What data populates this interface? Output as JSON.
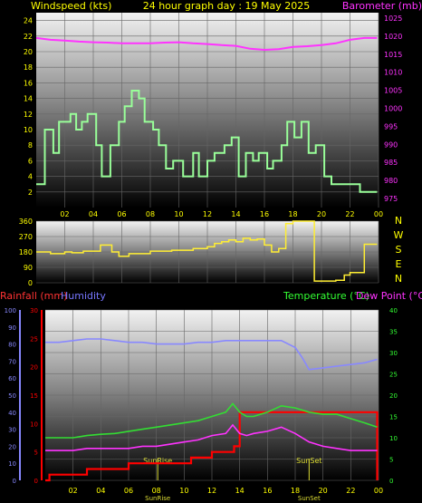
{
  "header": {
    "left_title": "Windspeed (kts)",
    "center_title": "24 hour graph day : 19 May 2025",
    "right_title": "Barometer (mb)"
  },
  "colors": {
    "wind": "#99ff99",
    "baro": "#ff33ff",
    "winddir": "#ffee33",
    "rain": "#ff0000",
    "humidity": "#8888ff",
    "temp": "#33dd33",
    "dew": "#ff33ff",
    "sun": "#dddd33",
    "yellow_text": "#ffff00",
    "red_text": "#ff3333",
    "blue_text": "#7777ff",
    "green_text": "#33ff33",
    "magenta_text": "#ff33ff"
  },
  "x_ticks": [
    "02",
    "04",
    "06",
    "08",
    "10",
    "12",
    "14",
    "16",
    "18",
    "20",
    "22",
    "00"
  ],
  "chart_data": [
    {
      "type": "line",
      "title": "Windspeed (kts) / Barometer (mb)",
      "x_unit": "hour",
      "xlim": [
        0,
        24
      ],
      "ylabel": "Windspeed (kts)",
      "ylim": [
        0,
        25
      ],
      "y_ticks": [
        2,
        4,
        6,
        8,
        10,
        12,
        14,
        16,
        18,
        20,
        22,
        24
      ],
      "y2label": "Barometer (mb)",
      "y2lim": [
        972.5,
        1026.5
      ],
      "y2_ticks": [
        975,
        980,
        985,
        990,
        995,
        1000,
        1005,
        1010,
        1015,
        1020,
        1025
      ],
      "series": [
        {
          "name": "Windspeed",
          "axis": "left",
          "x": [
            0,
            0.6,
            0.6,
            1.2,
            1.2,
            1.6,
            1.6,
            2.4,
            2.4,
            2.8,
            2.8,
            3.2,
            3.2,
            3.6,
            3.6,
            4.2,
            4.2,
            4.6,
            4.6,
            5.2,
            5.2,
            5.8,
            5.8,
            6.2,
            6.2,
            6.7,
            6.7,
            7.2,
            7.2,
            7.6,
            7.6,
            8.2,
            8.2,
            8.6,
            8.6,
            9.1,
            9.1,
            9.6,
            9.6,
            10.3,
            10.3,
            11.0,
            11.0,
            11.4,
            11.4,
            12.0,
            12.0,
            12.5,
            12.5,
            13.2,
            13.2,
            13.7,
            13.7,
            14.2,
            14.2,
            14.7,
            14.7,
            15.2,
            15.2,
            15.6,
            15.6,
            16.2,
            16.2,
            16.6,
            16.6,
            17.2,
            17.2,
            17.6,
            17.6,
            18.1,
            18.1,
            18.6,
            18.6,
            19.1,
            19.1,
            19.6,
            19.6,
            20.2,
            20.2,
            20.7,
            20.7,
            21.2,
            21.2,
            22.2,
            22.2,
            22.7,
            22.7,
            23.2,
            23.2,
            23.9
          ],
          "y": [
            3,
            3,
            10,
            10,
            7,
            7,
            11,
            11,
            12,
            12,
            10,
            10,
            11,
            11,
            12,
            12,
            8,
            8,
            4,
            4,
            8,
            8,
            11,
            11,
            13,
            13,
            15,
            15,
            14,
            14,
            11,
            11,
            10,
            10,
            8,
            8,
            5,
            5,
            6,
            6,
            4,
            4,
            7,
            7,
            4,
            4,
            6,
            6,
            7,
            7,
            8,
            8,
            9,
            9,
            4,
            4,
            7,
            7,
            6,
            6,
            7,
            7,
            5,
            5,
            6,
            6,
            8,
            8,
            11,
            11,
            9,
            9,
            11,
            11,
            7,
            7,
            8,
            8,
            4,
            4,
            3,
            3,
            3,
            3,
            3,
            3,
            2,
            2,
            2,
            2
          ]
        },
        {
          "name": "Barometer",
          "axis": "right",
          "x": [
            0,
            1,
            2,
            3,
            4,
            5,
            6,
            7,
            8,
            9,
            10,
            11,
            12,
            13,
            14,
            15,
            16,
            17,
            18,
            19,
            20,
            21,
            22,
            23,
            23.9
          ],
          "y": [
            1019.5,
            1019,
            1018.8,
            1018.5,
            1018.3,
            1018.2,
            1018,
            1018,
            1018,
            1018.2,
            1018.3,
            1018,
            1017.8,
            1017.5,
            1017.3,
            1016.5,
            1016.2,
            1016.4,
            1017,
            1017.2,
            1017.5,
            1018,
            1019,
            1019.5,
            1019.5
          ]
        }
      ]
    },
    {
      "type": "line",
      "title": "Wind direction",
      "x_unit": "hour",
      "xlim": [
        0,
        24
      ],
      "ylim": [
        0,
        360
      ],
      "y_ticks": [
        0,
        90,
        180,
        270,
        360
      ],
      "compass": [
        "N",
        "W",
        "S",
        "E",
        "N"
      ],
      "series": [
        {
          "name": "Wind direction",
          "x": [
            0,
            1,
            1,
            2,
            2,
            2.5,
            2.5,
            3.3,
            3.3,
            4.5,
            4.5,
            5.3,
            5.3,
            5.8,
            5.8,
            6.5,
            6.5,
            8.0,
            8.0,
            9.5,
            9.5,
            11.0,
            11.0,
            12.0,
            12.0,
            12.5,
            12.5,
            13.0,
            13.0,
            13.5,
            13.5,
            14.0,
            14.0,
            14.5,
            14.5,
            15.0,
            15.0,
            15.5,
            15.5,
            16.0,
            16.0,
            16.5,
            16.5,
            17.0,
            17.0,
            17.5,
            17.5,
            18.0,
            18.0,
            19.5,
            19.5,
            21.0,
            21.0,
            21.6,
            21.6,
            22.0,
            22.0,
            23.0,
            23.0,
            23.9
          ],
          "y": [
            180,
            180,
            170,
            170,
            180,
            180,
            175,
            175,
            185,
            185,
            220,
            220,
            180,
            180,
            155,
            155,
            170,
            170,
            185,
            185,
            190,
            190,
            200,
            200,
            210,
            210,
            230,
            230,
            240,
            240,
            250,
            250,
            240,
            240,
            260,
            260,
            250,
            250,
            255,
            255,
            220,
            220,
            180,
            180,
            200,
            200,
            345,
            345,
            360,
            360,
            10,
            10,
            15,
            15,
            45,
            45,
            60,
            60,
            225,
            225
          ]
        }
      ]
    },
    {
      "type": "line",
      "title": "Rainfall / Humidity / Temperature / Dew Point",
      "x_unit": "hour",
      "xlim": [
        0,
        24
      ],
      "ylabel": "Rainfall (mm) / Humidity",
      "ylim": [
        0,
        30
      ],
      "y_ticks": [
        0,
        5,
        10,
        15,
        20,
        25,
        30
      ],
      "humidity_ticks": [
        0,
        10,
        20,
        30,
        40,
        50,
        60,
        70,
        80,
        90,
        100
      ],
      "y2label": "Temperature (°C) / Dew Point (°C)",
      "y2lim": [
        0,
        40
      ],
      "y2_ticks": [
        0,
        5,
        10,
        15,
        20,
        25,
        30,
        35,
        40
      ],
      "events": [
        {
          "label": "SunRise",
          "x": 8.1
        },
        {
          "label": "SunSet",
          "x": 19.0
        }
      ],
      "series": [
        {
          "name": "Rainfall",
          "axis": "left",
          "x": [
            0,
            0.3,
            0.3,
            3.0,
            3.0,
            6.0,
            6.0,
            10.5,
            10.5,
            12.0,
            12.0,
            13.6,
            13.6,
            14.0,
            14.0,
            23.9,
            23.9
          ],
          "y": [
            0,
            0,
            1,
            1,
            2,
            2,
            3,
            3,
            4,
            4,
            5,
            5,
            6,
            6,
            12,
            12,
            0
          ]
        },
        {
          "name": "Humidity",
          "axis": "humidity",
          "x": [
            0,
            1,
            2,
            3,
            4,
            5,
            6,
            7,
            8,
            9,
            10,
            11,
            12,
            13,
            14,
            15,
            16,
            17,
            18,
            18.5,
            19,
            20,
            21,
            22,
            23,
            23.9
          ],
          "y": [
            81,
            81,
            82,
            83,
            83,
            82,
            81,
            81,
            80,
            80,
            80,
            81,
            81,
            82,
            82,
            82,
            82,
            82,
            78,
            72,
            65,
            66,
            67,
            68,
            69,
            71
          ]
        },
        {
          "name": "Temperature",
          "axis": "right",
          "x": [
            0,
            1,
            2,
            3,
            4,
            5,
            6,
            7,
            8,
            9,
            10,
            11,
            12,
            13,
            13.5,
            14,
            14.5,
            15,
            16,
            17,
            18,
            19,
            20,
            21,
            22,
            23,
            23.9
          ],
          "y": [
            10,
            10,
            10,
            10.5,
            10.8,
            11,
            11.5,
            12,
            12.5,
            13,
            13.5,
            14,
            15,
            16,
            18,
            16,
            15,
            15,
            16,
            17.5,
            17,
            16,
            15.5,
            15.5,
            14.5,
            13.5,
            12.5
          ]
        },
        {
          "name": "Dew Point",
          "axis": "right",
          "x": [
            0,
            1,
            2,
            3,
            4,
            5,
            6,
            7,
            8,
            9,
            10,
            11,
            12,
            13,
            13.5,
            14,
            14.5,
            15,
            16,
            17,
            18,
            19,
            20,
            21,
            22,
            23,
            23.9
          ],
          "y": [
            7,
            7,
            7,
            7.5,
            7.5,
            7.5,
            7.5,
            8,
            8,
            8.5,
            9,
            9.5,
            10.5,
            11,
            13,
            11,
            10.5,
            11,
            11.5,
            12.5,
            11,
            9,
            8,
            7.5,
            7,
            7,
            7
          ]
        }
      ]
    }
  ],
  "panel2_labels": {
    "rain_label": "Rainfall (mm)",
    "humidity_label": "Humidity",
    "temp_label": "Temperature (°C)",
    "dew_label": "Dew Point (°C)"
  }
}
